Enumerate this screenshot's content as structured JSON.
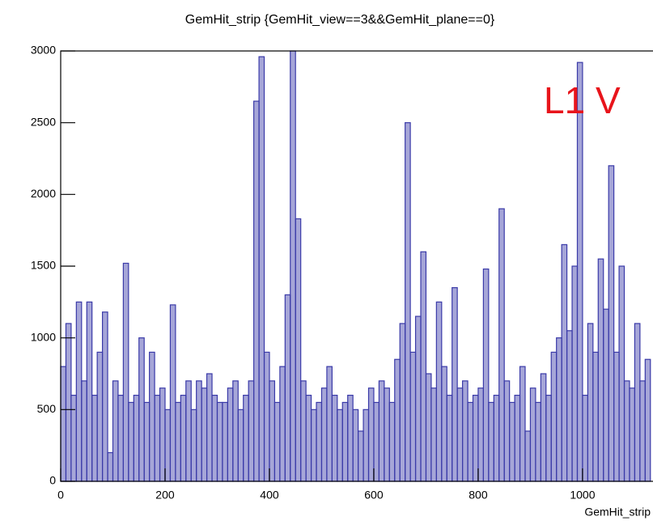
{
  "chart_data": {
    "type": "histogram",
    "title": "GemHit_strip {GemHit_view==3&&GemHit_plane==0}",
    "x_label": "GemHit_strip",
    "annotation": "L1 V",
    "annotation_color": "#e8141b",
    "color": "#3a3aa8",
    "xlim": [
      0,
      1135
    ],
    "ylim": [
      0,
      3000
    ],
    "xticks": [
      0,
      200,
      400,
      600,
      800,
      1000
    ],
    "yticks": [
      0,
      500,
      1000,
      1500,
      2000,
      2500,
      3000
    ],
    "bins": [
      0,
      10,
      20,
      30,
      40,
      50,
      60,
      70,
      80,
      90,
      100,
      110,
      120,
      130,
      140,
      150,
      160,
      170,
      180,
      190,
      200,
      210,
      220,
      230,
      240,
      250,
      260,
      270,
      280,
      290,
      300,
      310,
      320,
      330,
      340,
      350,
      360,
      370,
      380,
      390,
      400,
      410,
      420,
      430,
      440,
      450,
      460,
      470,
      480,
      490,
      500,
      510,
      520,
      530,
      540,
      550,
      560,
      570,
      580,
      590,
      600,
      610,
      620,
      630,
      640,
      650,
      660,
      670,
      680,
      690,
      700,
      710,
      720,
      730,
      740,
      750,
      760,
      770,
      780,
      790,
      800,
      810,
      820,
      830,
      840,
      850,
      860,
      870,
      880,
      890,
      900,
      910,
      920,
      930,
      940,
      950,
      960,
      970,
      980,
      990,
      1000,
      1010,
      1020,
      1030,
      1040,
      1050,
      1060,
      1070,
      1080,
      1090,
      1100,
      1110,
      1120,
      1130
    ],
    "counts": [
      800,
      1100,
      600,
      1250,
      700,
      1250,
      600,
      900,
      1180,
      200,
      700,
      600,
      1520,
      550,
      600,
      1000,
      550,
      900,
      600,
      650,
      500,
      1230,
      550,
      600,
      700,
      500,
      700,
      650,
      750,
      600,
      550,
      550,
      650,
      700,
      500,
      600,
      700,
      2650,
      2960,
      900,
      700,
      550,
      800,
      1300,
      3000,
      1830,
      700,
      600,
      500,
      550,
      650,
      800,
      600,
      500,
      550,
      600,
      500,
      350,
      500,
      650,
      550,
      700,
      650,
      550,
      850,
      1100,
      2500,
      900,
      1150,
      1600,
      750,
      650,
      1250,
      800,
      600,
      1350,
      650,
      700,
      550,
      600,
      650,
      1480,
      550,
      600,
      1900,
      700,
      550,
      600,
      800,
      350,
      650,
      550,
      750,
      600,
      900,
      1000,
      1650,
      1050,
      1500,
      2920,
      600,
      1100,
      900,
      1550,
      1200,
      2200,
      900,
      1500,
      700,
      650,
      1100,
      700,
      850
    ]
  }
}
